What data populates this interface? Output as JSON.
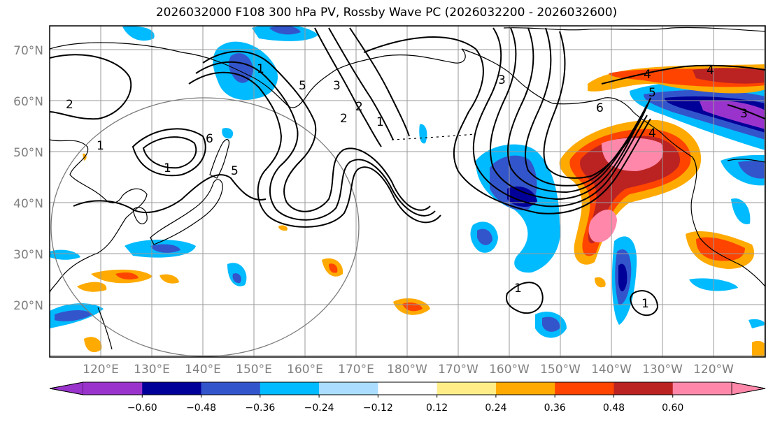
{
  "title": "2026032000 F108 300 hPa PV, Rossby Wave PC (2026032200 - 2026032600)",
  "latitude_labels": [
    "70°N",
    "60°N",
    "50°N",
    "40°N",
    "30°N",
    "20°N"
  ],
  "longitude_labels": [
    "120°E",
    "130°E",
    "140°E",
    "150°E",
    "160°E",
    "170°E",
    "180°W",
    "170°W",
    "160°W",
    "150°W",
    "140°W",
    "130°W",
    "120°W"
  ],
  "colorbar": {
    "ticks": [
      "−0.60",
      "−0.48",
      "−0.36",
      "−0.24",
      "−0.12",
      "0.12",
      "0.24",
      "0.36",
      "0.48",
      "0.60"
    ],
    "colors": [
      "#9933cc",
      "#000099",
      "#3355cc",
      "#00bbff",
      "#aaddff",
      "#ffffff",
      "#ffee88",
      "#ffaa00",
      "#ff4400",
      "#bb2222",
      "#ff88aa"
    ]
  },
  "pv_contour_labels": [
    "2",
    "1",
    "1",
    "5",
    "1",
    "5",
    "3",
    "2",
    "1",
    "6",
    "3",
    "4",
    "5",
    "4",
    "4",
    "3",
    "6",
    "1",
    "1",
    "2"
  ]
}
